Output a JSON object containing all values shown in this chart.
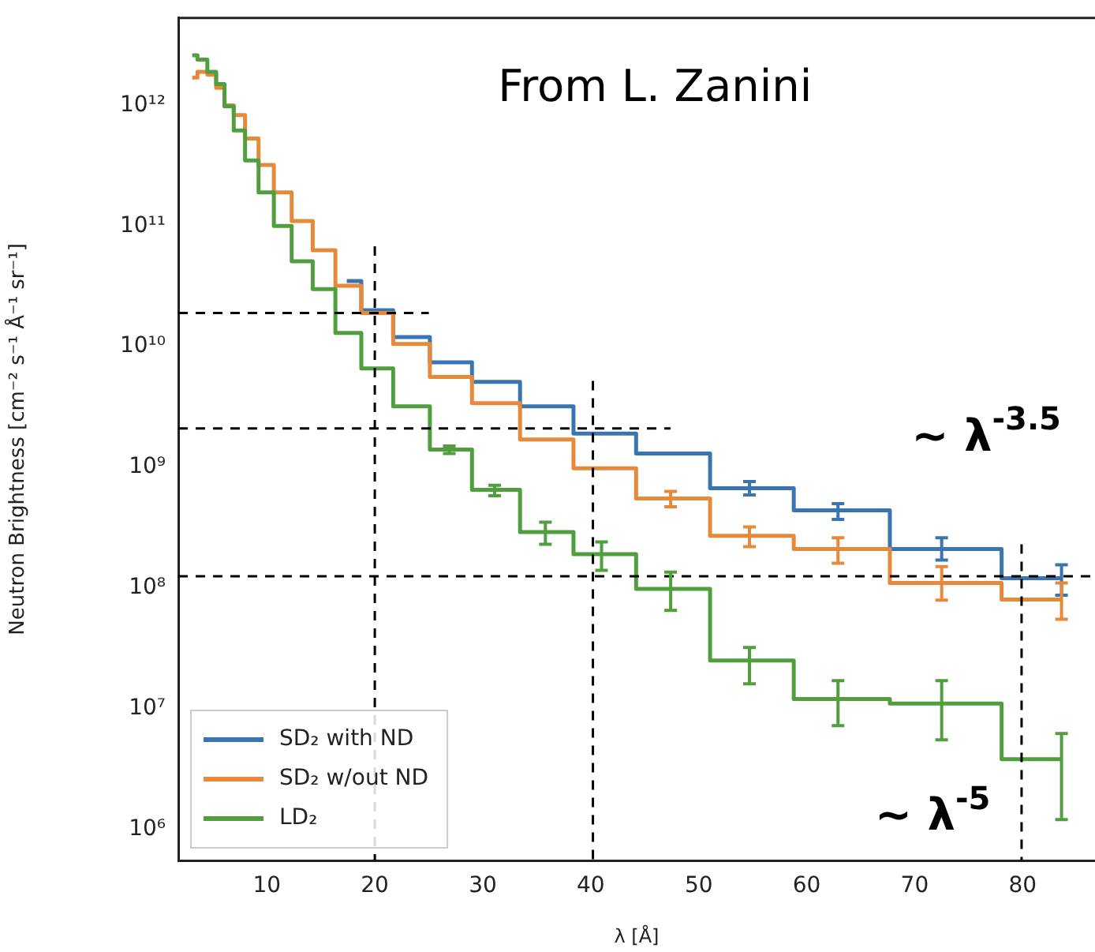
{
  "chart_data": {
    "type": "step",
    "xlabel": "λ [Å]",
    "ylabel": "Neutron Brightness [cm⁻² s⁻¹ Å⁻¹ sr⁻¹]",
    "annotations": [
      "From L. Zanini",
      "~ λ$^{-3.5}$",
      "~ λ$^{-5}$"
    ],
    "xlim": [
      1.8,
      86.7
    ],
    "xticks": [
      10,
      20,
      30,
      40,
      50,
      60,
      70,
      80
    ],
    "ylim": [
      550000,
      5300000000000
    ],
    "yticks": [
      {
        "value": 1000000,
        "label": "10⁶"
      },
      {
        "value": 10000000,
        "label": "10⁷"
      },
      {
        "value": 100000000,
        "label": "10⁸"
      },
      {
        "value": 1000000000,
        "label": "10⁹"
      },
      {
        "value": 10000000000,
        "label": "10¹⁰"
      },
      {
        "value": 100000000000,
        "label": "10¹¹"
      },
      {
        "value": 1000000000000,
        "label": "10¹²"
      }
    ],
    "log": "y",
    "grid": false,
    "legend": "bottom left",
    "marker": "none",
    "series": [
      {
        "name": "SD₂ with ND",
        "color": "#3b75af",
        "x": [
          17.4,
          20.1,
          23.3,
          26.9,
          31.1,
          35.8,
          41.0,
          47.4,
          54.7,
          62.9,
          72.5,
          83.6
        ],
        "values": [
          35000000000,
          20000000000,
          12000000000,
          7400000000,
          5100000000,
          3200000000,
          1900000000,
          1300000000,
          670000000,
          440000000,
          210000000,
          120000000
        ],
        "errors": [
          null,
          null,
          null,
          null,
          null,
          null,
          null,
          null,
          [
            590000000,
            760000000
          ],
          [
            370000000,
            500000000
          ],
          [
            170000000,
            260000000
          ],
          [
            87000000,
            155000000
          ]
        ]
      },
      {
        "name": "SD₂ w/out ND",
        "color": "#e6893a",
        "x": [
          3.09,
          4.06,
          4.92,
          5.69,
          6.47,
          7.4,
          8.57,
          9.9,
          11.4,
          13.2,
          15.3,
          17.4,
          20.1,
          23.3,
          26.9,
          31.1,
          35.8,
          41.0,
          47.4,
          54.7,
          62.9,
          72.5,
          83.6
        ],
        "values": [
          1700000000000,
          1900000000000,
          1800000000000,
          1400000000000,
          1000000000000,
          830000000000,
          530000000000,
          320000000000,
          190000000000,
          110000000000,
          63000000000,
          32000000000,
          19000000000,
          10500000000,
          5600000000,
          3400000000,
          1700000000,
          980000000,
          550000000,
          270000000,
          210000000,
          110000000,
          80000000
        ],
        "errors": [
          null,
          null,
          null,
          null,
          null,
          null,
          null,
          null,
          null,
          null,
          null,
          null,
          null,
          null,
          null,
          null,
          null,
          null,
          [
            470000000,
            630000000
          ],
          [
            220000000,
            320000000
          ],
          [
            160000000,
            260000000
          ],
          [
            79000000,
            150000000
          ],
          [
            55000000,
            110000000
          ]
        ]
      },
      {
        "name": "LD₂",
        "color": "#519e3e",
        "x": [
          3.09,
          4.06,
          4.92,
          5.69,
          6.47,
          7.4,
          8.57,
          9.9,
          11.4,
          13.2,
          15.3,
          17.4,
          20.1,
          23.3,
          26.9,
          31.1,
          35.8,
          41.0,
          47.4,
          54.7,
          62.9,
          72.5,
          83.6
        ],
        "values": [
          2600000000000,
          2400000000000,
          1900000000000,
          1500000000000,
          980000000000,
          620000000000,
          350000000000,
          190000000000,
          100000000000,
          51000000000,
          30000000000,
          13000000000,
          6600000000,
          3200000000,
          1400000000,
          650000000,
          290000000,
          190000000,
          98000000,
          25000000,
          12000000,
          11000000,
          3800000
        ],
        "errors": [
          null,
          null,
          null,
          null,
          null,
          null,
          null,
          null,
          null,
          null,
          null,
          null,
          null,
          null,
          [
            1300000000,
            1500000000
          ],
          [
            580000000,
            710000000
          ],
          [
            230000000,
            350000000
          ],
          [
            140000000,
            240000000
          ],
          [
            65000000,
            135000000
          ],
          [
            16000000,
            32000000
          ],
          [
            7200000,
            17000000
          ],
          [
            5500000,
            17000000
          ],
          [
            1200000,
            6200000
          ]
        ]
      },
      {
        "type": "line",
        "color": "#000000",
        "line_style": "dashed",
        "x": [
          1.8,
          25.0
        ],
        "values": [
          19000000000,
          19000000000
        ]
      },
      {
        "type": "line",
        "color": "#000000",
        "line_style": "dashed",
        "x": [
          1.8,
          47.4
        ],
        "values": [
          2100000000,
          2100000000
        ]
      },
      {
        "type": "line",
        "color": "#000000",
        "line_style": "dashed",
        "x": [
          1.8,
          86.7
        ],
        "values": [
          125000000,
          125000000
        ]
      },
      {
        "type": "line",
        "color": "#000000",
        "line_style": "dashed",
        "x": [
          20,
          20
        ],
        "values": [
          68000000000,
          550000
        ]
      },
      {
        "type": "line",
        "color": "#000000",
        "line_style": "dashed",
        "x": [
          40.2,
          40.2
        ],
        "values": [
          5200000000,
          550000
        ]
      },
      {
        "type": "line",
        "color": "#000000",
        "line_style": "dashed",
        "x": [
          79.9,
          79.9
        ],
        "values": [
          230000000,
          550000
        ]
      }
    ]
  }
}
